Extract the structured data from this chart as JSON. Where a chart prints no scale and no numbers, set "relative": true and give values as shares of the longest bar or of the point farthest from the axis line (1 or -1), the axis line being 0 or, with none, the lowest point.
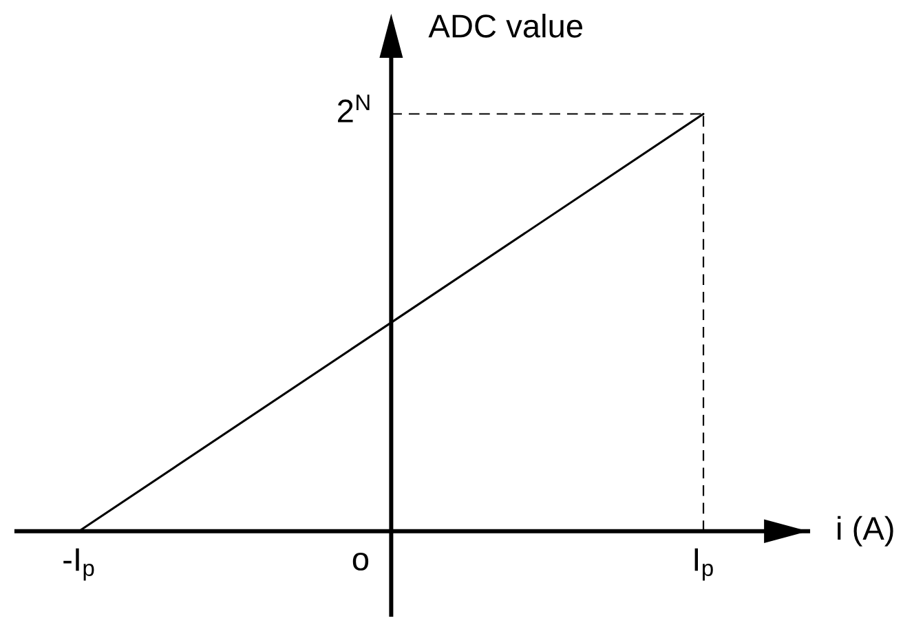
{
  "chart_data": {
    "type": "line",
    "xlabel": "i (A)",
    "ylabel": "ADC value",
    "relative": true,
    "categories": [
      "-I$_{p}$",
      null,
      "I$_{p}$"
    ],
    "values": [
      0,
      0.5,
      1
    ],
    "color": "#000000",
    "line_style": "solid",
    "ref_lines": [
      {
        "axis": "y",
        "value": 1,
        "label": "2$^{N}$",
        "color": "#000000",
        "line_style": "dashed"
      },
      {
        "axis": "x",
        "value": "I$_{p}$",
        "color": "#000000",
        "line_style": "dashed"
      }
    ],
    "annotations": [
      "o"
    ]
  }
}
